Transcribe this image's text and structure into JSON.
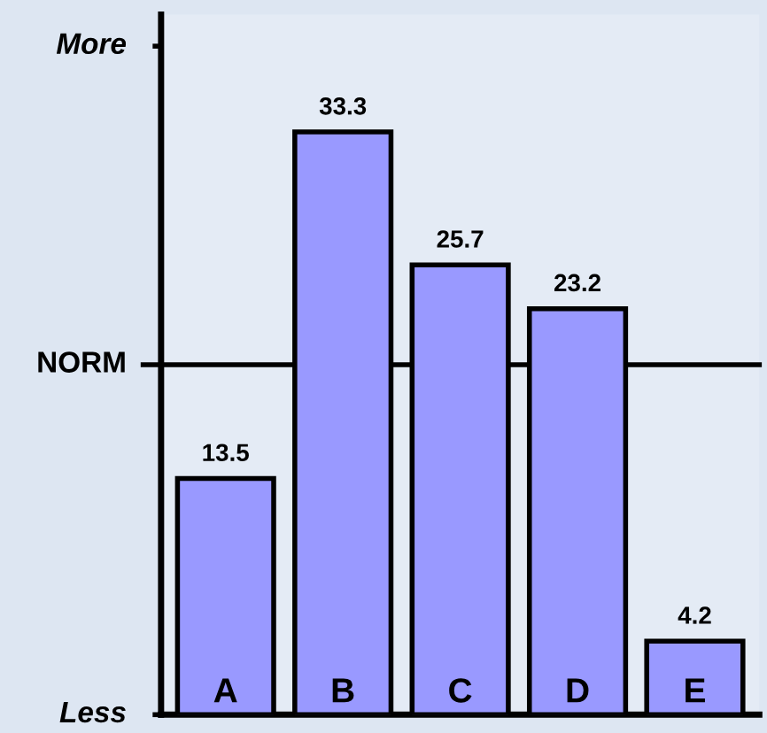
{
  "chart_data": {
    "type": "bar",
    "categories": [
      "A",
      "B",
      "C",
      "D",
      "E"
    ],
    "values": [
      13.5,
      33.3,
      25.7,
      23.2,
      4.2
    ],
    "color": "#9999ff",
    "data_labels": true,
    "ylim": [
      0,
      40
    ],
    "annotations": [
      "More",
      "Less"
    ],
    "ref_lines": [
      {
        "axis": "y",
        "value": 20,
        "label": "NORM",
        "color": "#000000"
      }
    ]
  }
}
